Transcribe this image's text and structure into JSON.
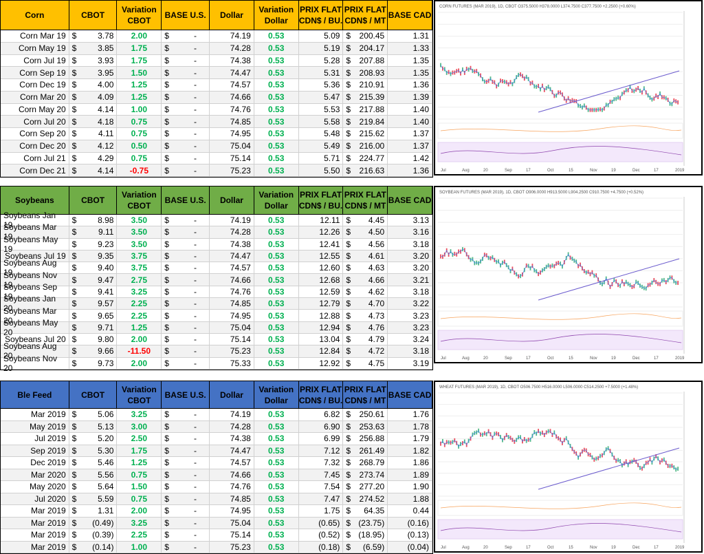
{
  "currency": "$",
  "columns": [
    "CBOT",
    "Variation CBOT",
    "BASE U.S.",
    "Dollar",
    "Variation Dollar",
    "PRIX FLAT CDN$ / BU.",
    "PRIX FLAT CDN$ / MT",
    "BASE CAD"
  ],
  "tables": [
    {
      "name": "Corn",
      "rows": [
        [
          "Corn Mar 19",
          "3.78",
          "2.00",
          "-",
          "74.19",
          "0.53",
          "5.09",
          "200.45",
          "1.31"
        ],
        [
          "Corn May 19",
          "3.85",
          "1.75",
          "-",
          "74.28",
          "0.53",
          "5.19",
          "204.17",
          "1.33"
        ],
        [
          "Corn Jul 19",
          "3.93",
          "1.75",
          "-",
          "74.38",
          "0.53",
          "5.28",
          "207.88",
          "1.35"
        ],
        [
          "Corn Sep 19",
          "3.95",
          "1.50",
          "-",
          "74.47",
          "0.53",
          "5.31",
          "208.93",
          "1.35"
        ],
        [
          "Corn Dec 19",
          "4.00",
          "1.25",
          "-",
          "74.57",
          "0.53",
          "5.36",
          "210.91",
          "1.36"
        ],
        [
          "Corn Mar 20",
          "4.09",
          "1.25",
          "-",
          "74.66",
          "0.53",
          "5.47",
          "215.39",
          "1.39"
        ],
        [
          "Corn May 20",
          "4.14",
          "1.00",
          "-",
          "74.76",
          "0.53",
          "5.53",
          "217.88",
          "1.40"
        ],
        [
          "Corn Jul 20",
          "4.18",
          "0.75",
          "-",
          "74.85",
          "0.53",
          "5.58",
          "219.84",
          "1.40"
        ],
        [
          "Corn Sep 20",
          "4.11",
          "0.75",
          "-",
          "74.95",
          "0.53",
          "5.48",
          "215.62",
          "1.37"
        ],
        [
          "Corn Dec 20",
          "4.12",
          "0.50",
          "-",
          "75.04",
          "0.53",
          "5.49",
          "216.00",
          "1.37"
        ],
        [
          "Corn Jul 21",
          "4.29",
          "0.75",
          "-",
          "75.14",
          "0.53",
          "5.71",
          "224.77",
          "1.42"
        ],
        [
          "Corn Dec 21",
          "4.14",
          "-0.75",
          "-",
          "75.23",
          "0.53",
          "5.50",
          "216.63",
          "1.36"
        ]
      ]
    },
    {
      "name": "Soybeans",
      "rows": [
        [
          "Soybeans Jan 19",
          "8.98",
          "3.50",
          "-",
          "74.19",
          "0.53",
          "12.11",
          "4.45",
          "3.13"
        ],
        [
          "Soybeans Mar 19",
          "9.11",
          "3.50",
          "-",
          "74.28",
          "0.53",
          "12.26",
          "4.50",
          "3.16"
        ],
        [
          "Soybeans May 19",
          "9.23",
          "3.50",
          "-",
          "74.38",
          "0.53",
          "12.41",
          "4.56",
          "3.18"
        ],
        [
          "Soybeans Jul 19",
          "9.35",
          "3.75",
          "-",
          "74.47",
          "0.53",
          "12.55",
          "4.61",
          "3.20"
        ],
        [
          "Soybeans Aug 19",
          "9.40",
          "3.75",
          "-",
          "74.57",
          "0.53",
          "12.60",
          "4.63",
          "3.20"
        ],
        [
          "Soybeans Nov 19",
          "9.47",
          "2.75",
          "-",
          "74.66",
          "0.53",
          "12.68",
          "4.66",
          "3.21"
        ],
        [
          "Soybeans Sep 19",
          "9.41",
          "3.25",
          "-",
          "74.76",
          "0.53",
          "12.59",
          "4.62",
          "3.18"
        ],
        [
          "Soybeans Jan 20",
          "9.57",
          "2.25",
          "-",
          "74.85",
          "0.53",
          "12.79",
          "4.70",
          "3.22"
        ],
        [
          "Soybeans Mar 20",
          "9.65",
          "2.25",
          "-",
          "74.95",
          "0.53",
          "12.88",
          "4.73",
          "3.23"
        ],
        [
          "Soybeans May 20",
          "9.71",
          "1.25",
          "-",
          "75.04",
          "0.53",
          "12.94",
          "4.76",
          "3.23"
        ],
        [
          "Soybeans Jul 20",
          "9.80",
          "2.00",
          "-",
          "75.14",
          "0.53",
          "13.04",
          "4.79",
          "3.24"
        ],
        [
          "Soybeans Aug 20",
          "9.66",
          "-11.50",
          "-",
          "75.23",
          "0.53",
          "12.84",
          "4.72",
          "3.18"
        ],
        [
          "Soybeans Nov 20",
          "9.73",
          "2.00",
          "-",
          "75.33",
          "0.53",
          "12.92",
          "4.75",
          "3.19"
        ]
      ]
    },
    {
      "name": "Ble Feed",
      "rows": [
        [
          "Mar 2019",
          "5.06",
          "3.25",
          "-",
          "74.19",
          "0.53",
          "6.82",
          "250.61",
          "1.76"
        ],
        [
          "May 2019",
          "5.13",
          "3.00",
          "-",
          "74.28",
          "0.53",
          "6.90",
          "253.63",
          "1.78"
        ],
        [
          "Jul 2019",
          "5.20",
          "2.50",
          "-",
          "74.38",
          "0.53",
          "6.99",
          "256.88",
          "1.79"
        ],
        [
          "Sep 2019",
          "5.30",
          "1.75",
          "-",
          "74.47",
          "0.53",
          "7.12",
          "261.49",
          "1.82"
        ],
        [
          "Dec 2019",
          "5.46",
          "1.25",
          "-",
          "74.57",
          "0.53",
          "7.32",
          "268.79",
          "1.86"
        ],
        [
          "Mar 2020",
          "5.56",
          "0.75",
          "-",
          "74.66",
          "0.53",
          "7.45",
          "273.74",
          "1.89"
        ],
        [
          "May 2020",
          "5.64",
          "1.50",
          "-",
          "74.76",
          "0.53",
          "7.54",
          "277.20",
          "1.90"
        ],
        [
          "Jul 2020",
          "5.59",
          "0.75",
          "-",
          "74.85",
          "0.53",
          "7.47",
          "274.52",
          "1.88"
        ],
        [
          "Mar 2019",
          "1.31",
          "2.00",
          "-",
          "74.95",
          "0.53",
          "1.75",
          "64.35",
          "0.44"
        ],
        [
          "Mar 2019",
          "(0.49)",
          "3.25",
          "-",
          "75.04",
          "0.53",
          "(0.65)",
          "(23.75)",
          "(0.16)"
        ],
        [
          "Mar 2019",
          "(0.39)",
          "2.25",
          "-",
          "75.14",
          "0.53",
          "(0.52)",
          "(18.95)",
          "(0.13)"
        ],
        [
          "Mar 2019",
          "(0.14)",
          "1.00",
          "-",
          "75.23",
          "0.53",
          "(0.18)",
          "(6.59)",
          "(0.04)"
        ]
      ]
    }
  ],
  "charts": [
    {
      "title": "CORN FUTURES (MAR 2019), 1D, CBOT  O375.5000 H378.0000 L374.7500 C377.7500 +2.2500 (+0.60%)"
    },
    {
      "title": "SOYBEAN FUTURES (MAR 2019), 1D, CBOT  O906.0000 H913.5000 L904.2500 C910.7500 +4.7500 (+0.52%)"
    },
    {
      "title": "WHEAT FUTURES (MAR 2019), 1D, CBOT  O506.7500 H516.0000 L506.0000 C514.2500 +7.5000 (+1.48%)"
    }
  ],
  "chart_x_labels": [
    "Jul",
    "Aug",
    "20",
    "Sep",
    "17",
    "Oct",
    "15",
    "Nov",
    "19",
    "Dec",
    "17",
    "2019"
  ]
}
